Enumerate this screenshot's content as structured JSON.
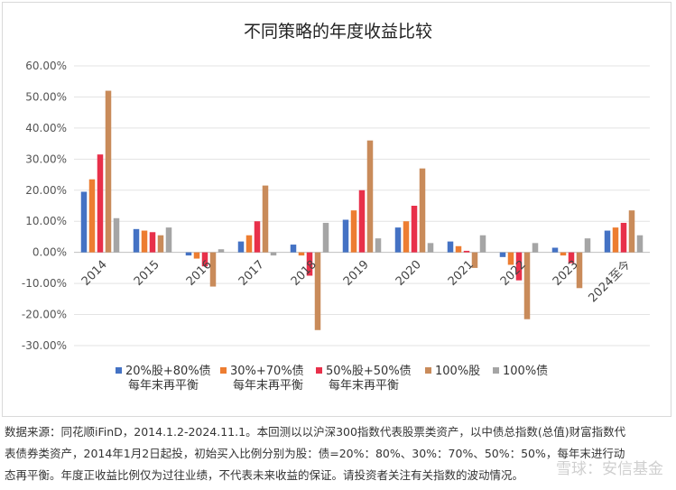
{
  "chart_data": {
    "type": "bar",
    "title": "不同策略的年度收益比较",
    "categories": [
      "2014",
      "2015",
      "2016",
      "2017",
      "2018",
      "2019",
      "2020",
      "2021",
      "2022",
      "2023",
      "2024至今"
    ],
    "yticks": [
      "60.00%",
      "50.00%",
      "40.00%",
      "30.00%",
      "20.00%",
      "10.00%",
      "0.00%",
      "-10.00%",
      "-20.00%",
      "-30.00%"
    ],
    "ylim": [
      -30,
      60
    ],
    "grid": true,
    "legend_position": "bottom",
    "series": [
      {
        "name": "20%股+80%债每年末再平衡",
        "label_line1": "20%股+80%债",
        "label_line2": "每年末再平衡",
        "color": "#4472c4",
        "values": [
          19.5,
          7.5,
          -1.0,
          3.5,
          2.5,
          10.5,
          8.0,
          3.5,
          -1.5,
          1.5,
          7.0
        ]
      },
      {
        "name": "30%+70%债每年末再平衡",
        "label_line1": "30%+70%债",
        "label_line2": "每年末再平衡",
        "color": "#ed7d31",
        "values": [
          23.5,
          7.0,
          -2.0,
          5.5,
          -1.0,
          13.5,
          10.0,
          2.0,
          -4.0,
          -1.0,
          8.0
        ]
      },
      {
        "name": "50%股+50%债每年末再平衡",
        "label_line1": "50%股+50%债",
        "label_line2": "每年末再平衡",
        "color": "#e8304a",
        "values": [
          31.5,
          6.5,
          -4.5,
          10.0,
          -7.5,
          20.0,
          15.0,
          0.5,
          -9.0,
          -3.5,
          9.5
        ]
      },
      {
        "name": "100%股",
        "label_line1": "100%股",
        "label_line2": "",
        "color": "#c98b5a",
        "values": [
          52.0,
          5.5,
          -11.0,
          21.5,
          -25.0,
          36.0,
          27.0,
          -5.0,
          -21.5,
          -11.5,
          13.5
        ]
      },
      {
        "name": "100%债",
        "label_line1": "100%债",
        "label_line2": "",
        "color": "#a5a5a5",
        "values": [
          11.0,
          8.0,
          1.0,
          -1.0,
          9.5,
          4.5,
          3.0,
          5.5,
          3.0,
          4.5,
          5.5
        ]
      }
    ]
  },
  "footnote": {
    "line1": "数据来源：同花顺iFinD，2014.1.2-2024.11.1。本回测以以沪深300指数代表股票类资产，以中债总指数(总值)财富指数代",
    "line2": "表债券类资产，2014年1月2日起投，初始买入比例分别为股：债=20%：80%、30%：70%、50%：50%，每年末进行动",
    "line3": "态再平衡。年度正收益比例仅为过往业绩，不代表未来收益的保证。请投资者关注有关指数的波动情况。"
  },
  "watermark": "雪球：安信基金"
}
